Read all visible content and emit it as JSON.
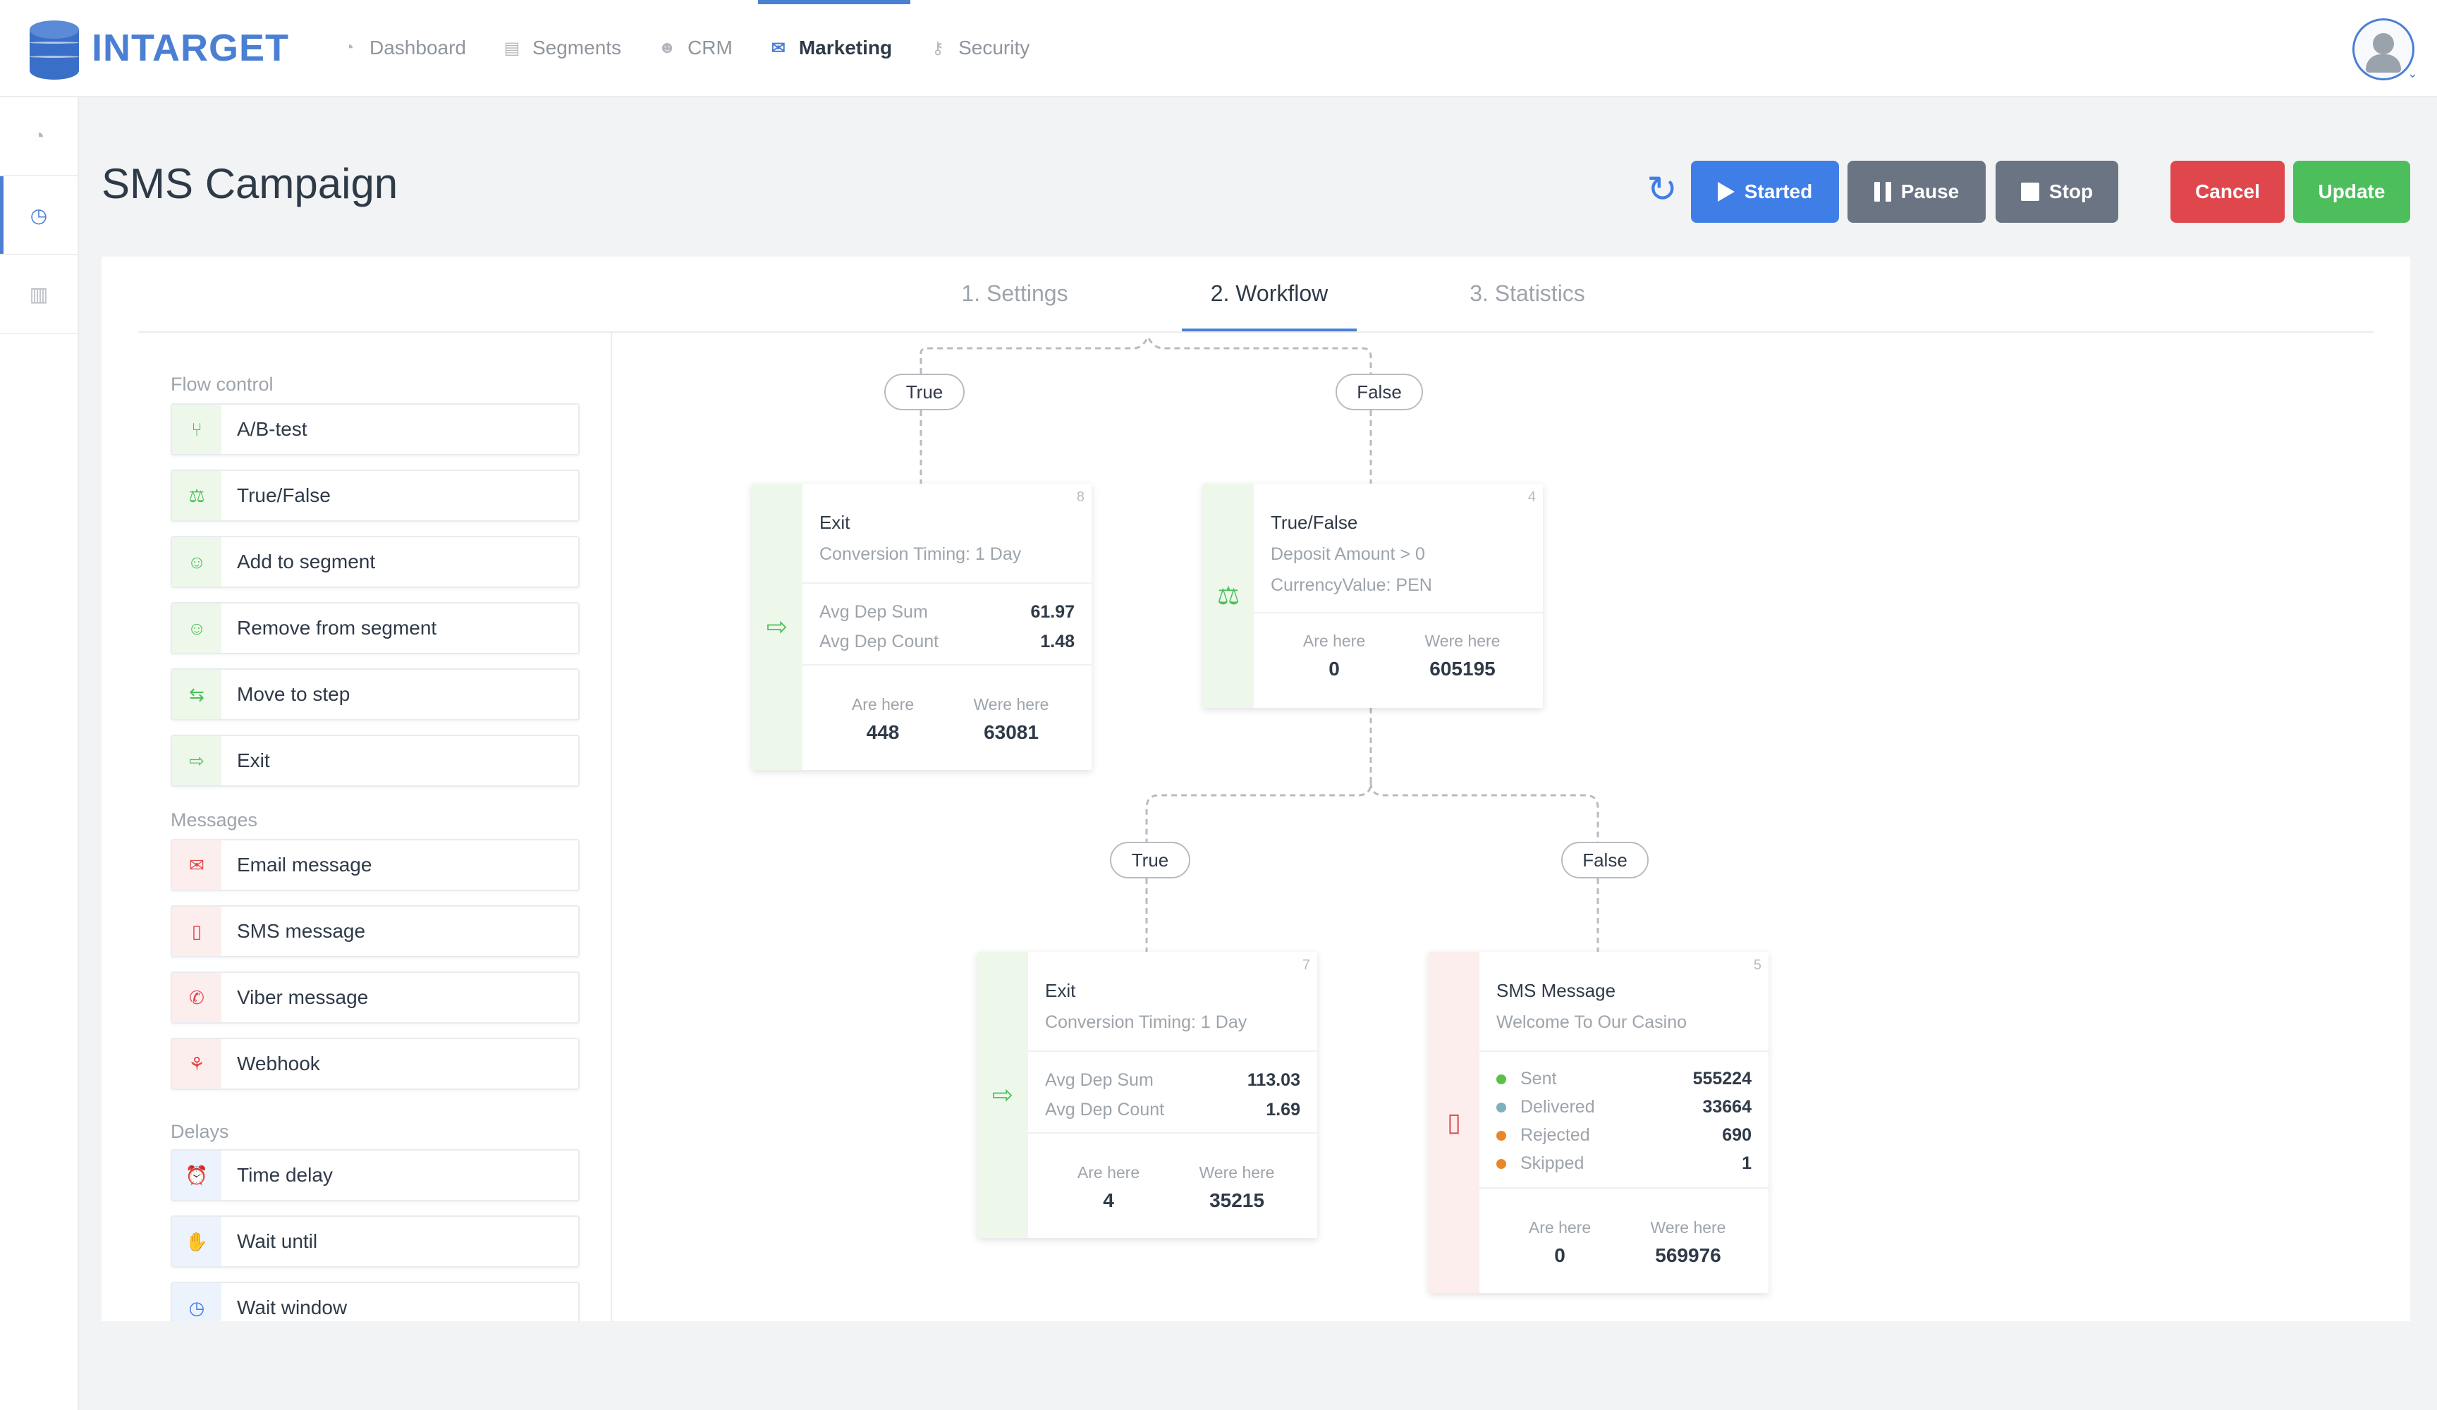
{
  "app": {
    "brand": "INTARGET",
    "nav": [
      {
        "label": "Dashboard",
        "icon": "pie-chart-icon"
      },
      {
        "label": "Segments",
        "icon": "document-icon"
      },
      {
        "label": "CRM",
        "icon": "users-icon"
      },
      {
        "label": "Marketing",
        "icon": "envelope-icon",
        "active": true
      },
      {
        "label": "Security",
        "icon": "key-icon"
      }
    ],
    "rail": [
      {
        "icon": "pie-chart-icon"
      },
      {
        "icon": "clock-icon",
        "active": true
      },
      {
        "icon": "report-icon"
      }
    ]
  },
  "page": {
    "title": "SMS Campaign",
    "buttons": {
      "started": "Started",
      "pause": "Pause",
      "stop": "Stop",
      "cancel": "Cancel",
      "update": "Update"
    },
    "tabs": [
      "1. Settings",
      "2. Workflow",
      "3. Statistics"
    ],
    "active_tab": "2. Workflow"
  },
  "palette": {
    "sections": {
      "flow": "Flow control",
      "messages": "Messages",
      "delays": "Delays"
    },
    "flow": [
      "A/B-test",
      "True/False",
      "Add to segment",
      "Remove from segment",
      "Move to step",
      "Exit"
    ],
    "messages": [
      "Email message",
      "SMS message",
      "Viber message",
      "Webhook"
    ],
    "delays": [
      "Time delay",
      "Wait until",
      "Wait window"
    ]
  },
  "workflow": {
    "branch_labels": {
      "top_true": "True",
      "top_false": "False",
      "mid_true": "True",
      "mid_false": "False"
    },
    "node8": {
      "id": "8",
      "title": "Exit",
      "sub": "Conversion Timing: 1 Day",
      "avg_dep_sum_label": "Avg Dep Sum",
      "avg_dep_sum": "61.97",
      "avg_dep_count_label": "Avg Dep Count",
      "avg_dep_count": "1.48",
      "are_here_label": "Are here",
      "are_here": "448",
      "were_here_label": "Were here",
      "were_here": "63081"
    },
    "node4": {
      "id": "4",
      "title": "True/False",
      "cond1": "Deposit Amount > 0",
      "cond2": "CurrencyValue: PEN",
      "are_here_label": "Are here",
      "are_here": "0",
      "were_here_label": "Were here",
      "were_here": "605195"
    },
    "node7": {
      "id": "7",
      "title": "Exit",
      "sub": "Conversion Timing: 1 Day",
      "avg_dep_sum_label": "Avg Dep Sum",
      "avg_dep_sum": "113.03",
      "avg_dep_count_label": "Avg Dep Count",
      "avg_dep_count": "1.69",
      "are_here_label": "Are here",
      "are_here": "4",
      "were_here_label": "Were here",
      "were_here": "35215"
    },
    "node5": {
      "id": "5",
      "title": "SMS Message",
      "sub": "Welcome To Our Casino",
      "stats": [
        {
          "label": "Sent",
          "value": "555224",
          "color": "#5bbf4a"
        },
        {
          "label": "Delivered",
          "value": "33664",
          "color": "#7fb0c0"
        },
        {
          "label": "Rejected",
          "value": "690",
          "color": "#e8862a"
        },
        {
          "label": "Skipped",
          "value": "1",
          "color": "#e8862a"
        }
      ],
      "are_here_label": "Are here",
      "are_here": "0",
      "were_here_label": "Were here",
      "were_here": "569976"
    }
  }
}
